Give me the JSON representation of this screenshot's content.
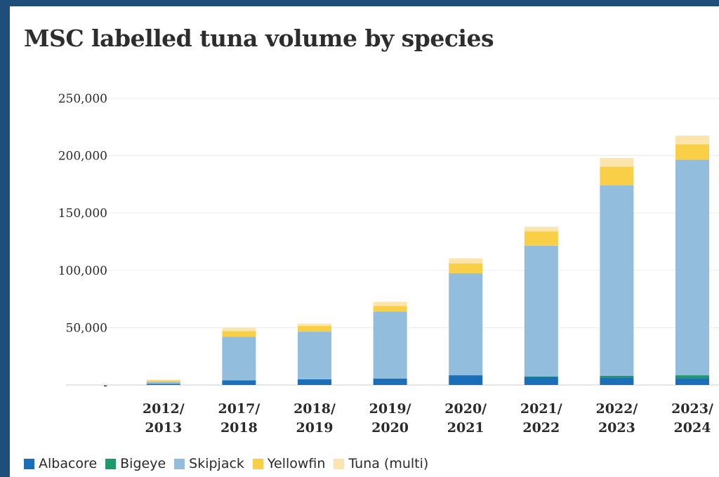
{
  "chart_data": {
    "type": "bar",
    "stacked": true,
    "title": "MSC labelled tuna volume by species",
    "xlabel": "",
    "ylabel": "",
    "ylim": [
      0,
      250000
    ],
    "y_ticks": [
      "250,000",
      "200,000",
      "150,000",
      "100,000",
      "50,000",
      "-"
    ],
    "y_tick_values": [
      250000,
      200000,
      150000,
      100000,
      50000,
      0
    ],
    "grid": true,
    "legend_position": "bottom",
    "categories": [
      [
        "2012/",
        "2013"
      ],
      [
        "2017/",
        "2018"
      ],
      [
        "2018/",
        "2019"
      ],
      [
        "2019/",
        "2020"
      ],
      [
        "2020/",
        "2021"
      ],
      [
        "2021/",
        "2022"
      ],
      [
        "2022/",
        "2023"
      ],
      [
        "2023/",
        "2024"
      ]
    ],
    "series": [
      {
        "name": "Albacore",
        "color": "#1a6fb8",
        "values": [
          1000,
          4000,
          5000,
          5500,
          8500,
          7000,
          6500,
          6000
        ]
      },
      {
        "name": "Bigeye",
        "color": "#1e9a6a",
        "values": [
          0,
          0,
          0,
          0,
          0,
          500,
          1500,
          2500
        ]
      },
      {
        "name": "Skipjack",
        "color": "#93bddc",
        "values": [
          1500,
          38000,
          41500,
          58500,
          89000,
          114000,
          166000,
          188000
        ]
      },
      {
        "name": "Yellowfin",
        "color": "#f9cf48",
        "values": [
          1500,
          5000,
          5000,
          5000,
          8500,
          12500,
          16500,
          13500
        ]
      },
      {
        "name": "Tuna (multi)",
        "color": "#fbe5ad",
        "values": [
          500,
          3000,
          2000,
          3500,
          4500,
          4000,
          7500,
          7500
        ]
      }
    ]
  }
}
